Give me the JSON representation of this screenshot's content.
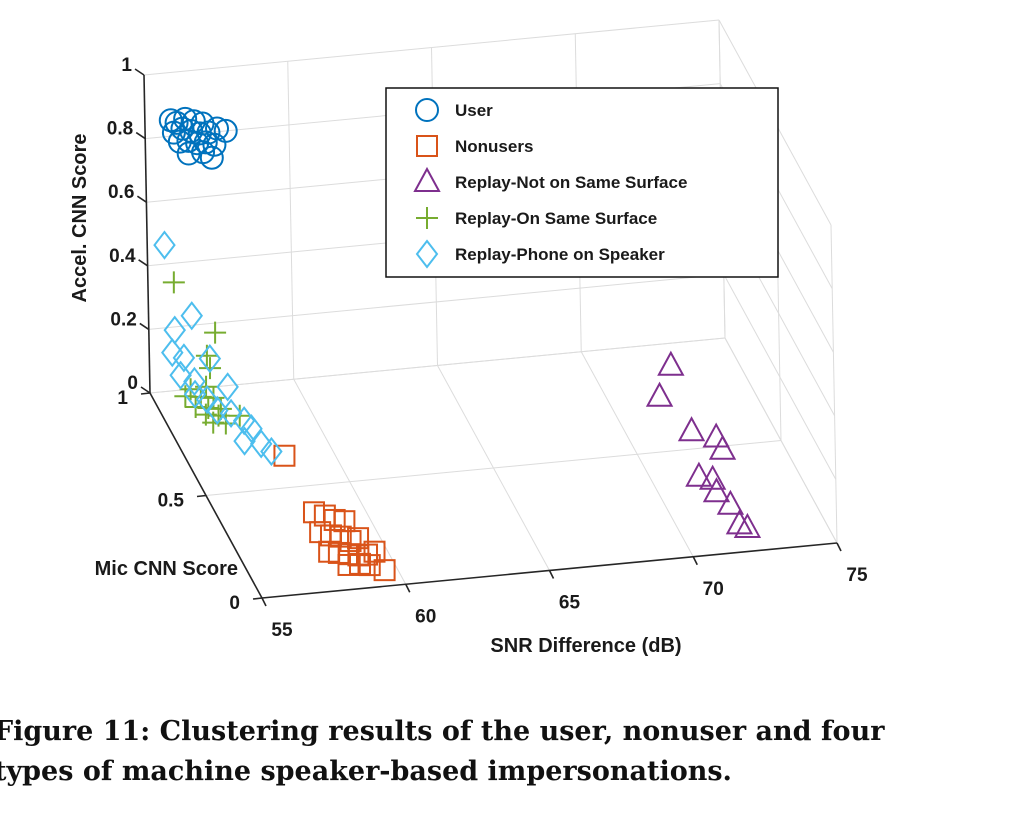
{
  "caption": "Figure 11: Clustering results of the user, nonuser and four types of machine speaker-based impersonations.",
  "caption_lines": [
    "Figure 11: Clustering results of the user, nonuser and four",
    "types of machine speaker-based impersonations."
  ],
  "chart_data": {
    "type": "scatter",
    "dimensions": 3,
    "xlabel": "SNR Difference (dB)",
    "ylabel": "Mic CNN Score",
    "zlabel": "Accel. CNN Score",
    "xlim": [
      55,
      75
    ],
    "ylim": [
      0,
      1
    ],
    "zlim": [
      0,
      1
    ],
    "x_ticks": [
      "55",
      "60",
      "65",
      "70",
      "75"
    ],
    "y_ticks": [
      "0",
      "0.5",
      "1"
    ],
    "z_ticks": [
      "0",
      "0.2",
      "0.4",
      "0.6",
      "0.8",
      "1"
    ],
    "grid": true,
    "legend_position": "top-right",
    "series": [
      {
        "name": "User",
        "marker": "circle",
        "color": "#0072BD",
        "points": [
          [
            55.9,
            1,
            0.85
          ],
          [
            56.1,
            1,
            0.84
          ],
          [
            56.4,
            1,
            0.85
          ],
          [
            56.7,
            1,
            0.84
          ],
          [
            57.0,
            1,
            0.83
          ],
          [
            56.0,
            1,
            0.81
          ],
          [
            56.3,
            1,
            0.82
          ],
          [
            56.6,
            1,
            0.81
          ],
          [
            56.9,
            1,
            0.8
          ],
          [
            57.2,
            1,
            0.8
          ],
          [
            57.5,
            1,
            0.81
          ],
          [
            57.8,
            1,
            0.8
          ],
          [
            56.2,
            1,
            0.78
          ],
          [
            56.5,
            1,
            0.78
          ],
          [
            56.8,
            1,
            0.77
          ],
          [
            57.1,
            1,
            0.77
          ],
          [
            57.4,
            1,
            0.76
          ],
          [
            56.5,
            1,
            0.74
          ],
          [
            57.0,
            1,
            0.74
          ],
          [
            57.3,
            1,
            0.72
          ]
        ]
      },
      {
        "name": "Nonusers",
        "marker": "square",
        "color": "#D95319",
        "points": [
          [
            58.2,
            0.62,
            0.02
          ],
          [
            58.1,
            0.33,
            0.03
          ],
          [
            58.4,
            0.31,
            0.03
          ],
          [
            58.7,
            0.3,
            0.02
          ],
          [
            59.0,
            0.29,
            0.02
          ],
          [
            58.0,
            0.25,
            0.02
          ],
          [
            58.3,
            0.23,
            0.02
          ],
          [
            58.6,
            0.22,
            0.02
          ],
          [
            58.9,
            0.21,
            0.01
          ],
          [
            59.2,
            0.22,
            0.01
          ],
          [
            58.0,
            0.17,
            0.01
          ],
          [
            58.3,
            0.16,
            0.01
          ],
          [
            58.6,
            0.15,
            0.01
          ],
          [
            58.9,
            0.14,
            0.01
          ],
          [
            59.2,
            0.14,
            0.01
          ],
          [
            59.5,
            0.15,
            0.01
          ],
          [
            58.4,
            0.1,
            0.01
          ],
          [
            58.8,
            0.1,
            0.01
          ],
          [
            59.1,
            0.09,
            0.01
          ],
          [
            59.5,
            0.06,
            0.01
          ]
        ]
      },
      {
        "name": "Replay-Not on Same Surface",
        "marker": "triangle",
        "color": "#7E2F8E",
        "points": [
          [
            71.6,
            0.6,
            0.2
          ],
          [
            71.0,
            0.55,
            0.14
          ],
          [
            71.6,
            0.42,
            0.11
          ],
          [
            72.3,
            0.38,
            0.11
          ],
          [
            72.4,
            0.35,
            0.09
          ],
          [
            71.3,
            0.28,
            0.06
          ],
          [
            71.7,
            0.26,
            0.06
          ],
          [
            71.6,
            0.2,
            0.06
          ],
          [
            72.0,
            0.18,
            0.03
          ],
          [
            72.0,
            0.1,
            0.02
          ],
          [
            72.2,
            0.08,
            0.02
          ]
        ]
      },
      {
        "name": "Replay-On Same Surface",
        "marker": "plus",
        "color": "#77AC30",
        "points": [
          [
            55.9,
            1,
            0.34
          ],
          [
            57.3,
            1,
            0.17
          ],
          [
            57.0,
            1,
            0.1
          ],
          [
            57.1,
            1,
            0.06
          ],
          [
            56.3,
            0.97,
            0.02
          ],
          [
            56.8,
            0.96,
            0.03
          ],
          [
            56.0,
            0.94,
            0.02
          ],
          [
            56.5,
            0.93,
            0.02
          ],
          [
            56.9,
            0.92,
            0.02
          ],
          [
            56.2,
            0.9,
            0.01
          ],
          [
            56.6,
            0.89,
            0.01
          ],
          [
            57.0,
            0.88,
            0.01
          ],
          [
            56.4,
            0.86,
            0.01
          ],
          [
            56.8,
            0.85,
            0.01
          ],
          [
            57.5,
            0.84,
            0.01
          ],
          [
            56.5,
            0.82,
            0.01
          ],
          [
            56.9,
            0.81,
            0.01
          ]
        ]
      },
      {
        "name": "Replay-Phone on Speaker",
        "marker": "diamond",
        "color": "#4DBEEE",
        "points": [
          [
            55.6,
            1,
            0.46
          ],
          [
            56.5,
            1,
            0.23
          ],
          [
            55.9,
            1,
            0.19
          ],
          [
            57.1,
            1,
            0.09
          ],
          [
            55.8,
            1,
            0.12
          ],
          [
            56.2,
            1,
            0.1
          ],
          [
            56.0,
            0.98,
            0.06
          ],
          [
            56.4,
            0.96,
            0.05
          ],
          [
            57.4,
            0.92,
            0.05
          ],
          [
            56.3,
            0.93,
            0.03
          ],
          [
            56.6,
            0.9,
            0.03
          ],
          [
            56.8,
            0.86,
            0.02
          ],
          [
            57.2,
            0.84,
            0.02
          ],
          [
            57.5,
            0.8,
            0.02
          ],
          [
            57.6,
            0.76,
            0.02
          ],
          [
            57.2,
            0.72,
            0.01
          ],
          [
            57.7,
            0.7,
            0.01
          ],
          [
            57.9,
            0.66,
            0.01
          ]
        ]
      }
    ]
  }
}
